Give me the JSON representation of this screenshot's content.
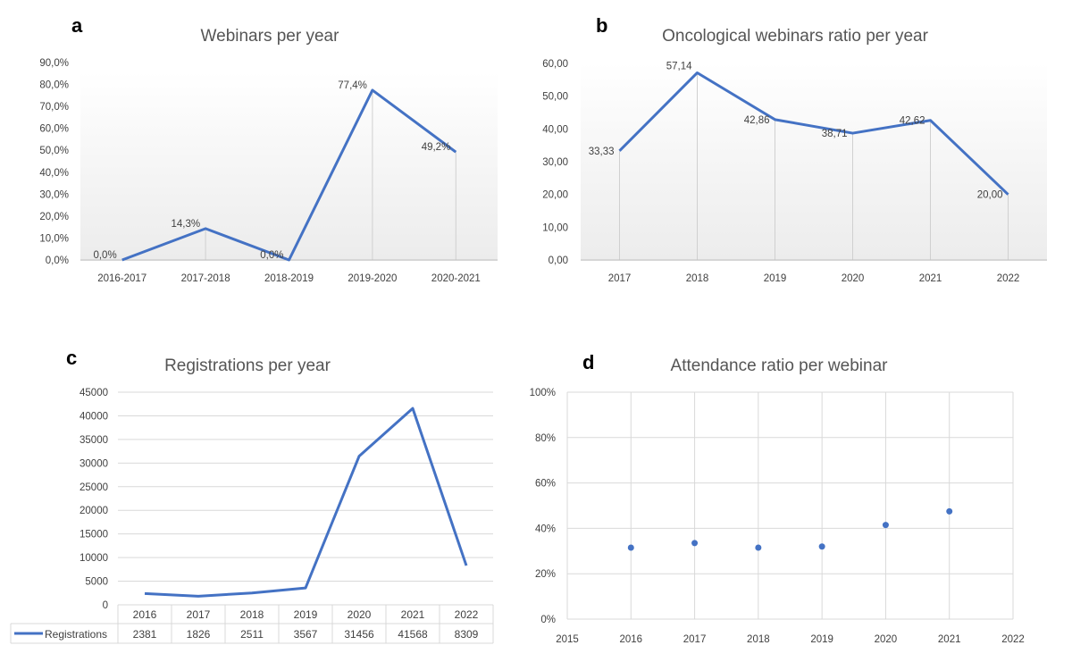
{
  "chart_data": [
    {
      "id": "a",
      "type": "line",
      "panel_letter": "a",
      "title": "Webinars per year",
      "categories": [
        "2016-2017",
        "2017-2018",
        "2018-2019",
        "2019-2020",
        "2020-2021"
      ],
      "values": [
        0.0,
        14.3,
        0.0,
        77.4,
        49.2
      ],
      "data_labels": [
        "0,0%",
        "14,3%",
        "0,0%",
        "77,4%",
        "49,2%"
      ],
      "y_ticks": [
        "0,0%",
        "10,0%",
        "20,0%",
        "30,0%",
        "40,0%",
        "50,0%",
        "60,0%",
        "70,0%",
        "80,0%",
        "90,0%"
      ],
      "ylim": [
        0,
        90
      ],
      "color": "#4472c4",
      "grid": false,
      "drop_lines": true
    },
    {
      "id": "b",
      "type": "line",
      "panel_letter": "b",
      "title": "Oncological webinars ratio per year",
      "categories": [
        "2017",
        "2018",
        "2019",
        "2020",
        "2021",
        "2022"
      ],
      "values": [
        33.33,
        57.14,
        42.86,
        38.71,
        42.62,
        20.0
      ],
      "data_labels": [
        "33,33",
        "57,14",
        "42,86",
        "38,71",
        "42,62",
        "20,00"
      ],
      "y_ticks": [
        "0,00",
        "10,00",
        "20,00",
        "30,00",
        "40,00",
        "50,00",
        "60,00"
      ],
      "ylim": [
        0,
        60
      ],
      "color": "#4472c4",
      "grid": false,
      "drop_lines": true
    },
    {
      "id": "c",
      "type": "line",
      "panel_letter": "c",
      "title": "Registrations per year",
      "categories": [
        "2016",
        "2017",
        "2018",
        "2019",
        "2020",
        "2021",
        "2022"
      ],
      "series": [
        {
          "name": "Registrations",
          "values": [
            2381,
            1826,
            2511,
            3567,
            31456,
            41568,
            8309
          ]
        }
      ],
      "table_values": [
        "2381",
        "1826",
        "2511",
        "3567",
        "31456",
        "41568",
        "8309"
      ],
      "y_ticks": [
        "0",
        "5000",
        "10000",
        "15000",
        "20000",
        "25000",
        "30000",
        "35000",
        "40000",
        "45000"
      ],
      "ylim": [
        0,
        45000
      ],
      "color": "#4472c4",
      "grid": true,
      "data_table": true
    },
    {
      "id": "d",
      "type": "scatter",
      "panel_letter": "d",
      "title": "Attendance ratio per webinar",
      "x": [
        2016,
        2017,
        2018,
        2019,
        2020,
        2021
      ],
      "y": [
        31.5,
        33.5,
        31.5,
        32.0,
        41.5,
        47.5
      ],
      "x_ticks": [
        "2015",
        "2016",
        "2017",
        "2018",
        "2019",
        "2020",
        "2021",
        "2022"
      ],
      "y_ticks": [
        "0%",
        "20%",
        "40%",
        "60%",
        "80%",
        "100%"
      ],
      "xlim": [
        2015,
        2022
      ],
      "ylim": [
        0,
        100
      ],
      "color": "#4472c4",
      "grid": true
    }
  ]
}
